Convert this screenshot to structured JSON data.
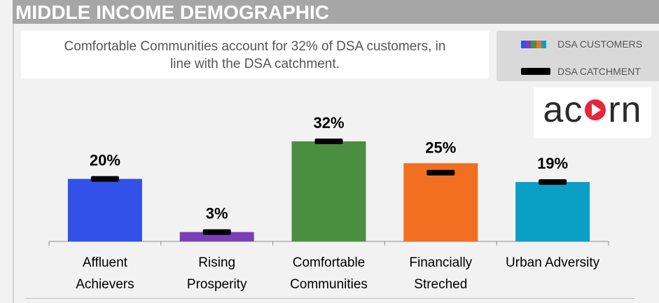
{
  "header": {
    "title": "MIDDLE INCOME DEMOGRAPHIC",
    "color": "#a6a6a6"
  },
  "subtitle": {
    "line1": "Comfortable Communities account for 32% of DSA customers, in",
    "line2": "line with the DSA catchment."
  },
  "legend": {
    "customers_label": "DSA CUSTOMERS",
    "catchment_label": "DSA CATCHMENT",
    "customers_swatch_colors": [
      "#3251e8",
      "#7a3fb8",
      "#4a8f3f",
      "#f26f21",
      "#0aa0c6"
    ]
  },
  "logo": {
    "text_pre": "ac",
    "text_post": "rn",
    "accent": "#e8253a"
  },
  "chart_data": {
    "type": "bar",
    "categories": [
      [
        "Affluent",
        "Achievers"
      ],
      [
        "Rising",
        "Prosperity"
      ],
      [
        "Comfortable",
        "Communities"
      ],
      [
        "Financially",
        "Streched"
      ],
      [
        "Urban Adversity"
      ]
    ],
    "series": [
      {
        "name": "DSA CUSTOMERS",
        "values": [
          20,
          3,
          32,
          25,
          19
        ]
      },
      {
        "name": "DSA CATCHMENT",
        "values": [
          20,
          3,
          32,
          22,
          19
        ]
      }
    ],
    "data_labels": [
      "20%",
      "3%",
      "32%",
      "25%",
      "19%"
    ],
    "colors": [
      "#3251e8",
      "#7a3fb8",
      "#4a8f3f",
      "#f26f21",
      "#0aa0c6"
    ],
    "ylim": [
      0,
      40
    ]
  }
}
